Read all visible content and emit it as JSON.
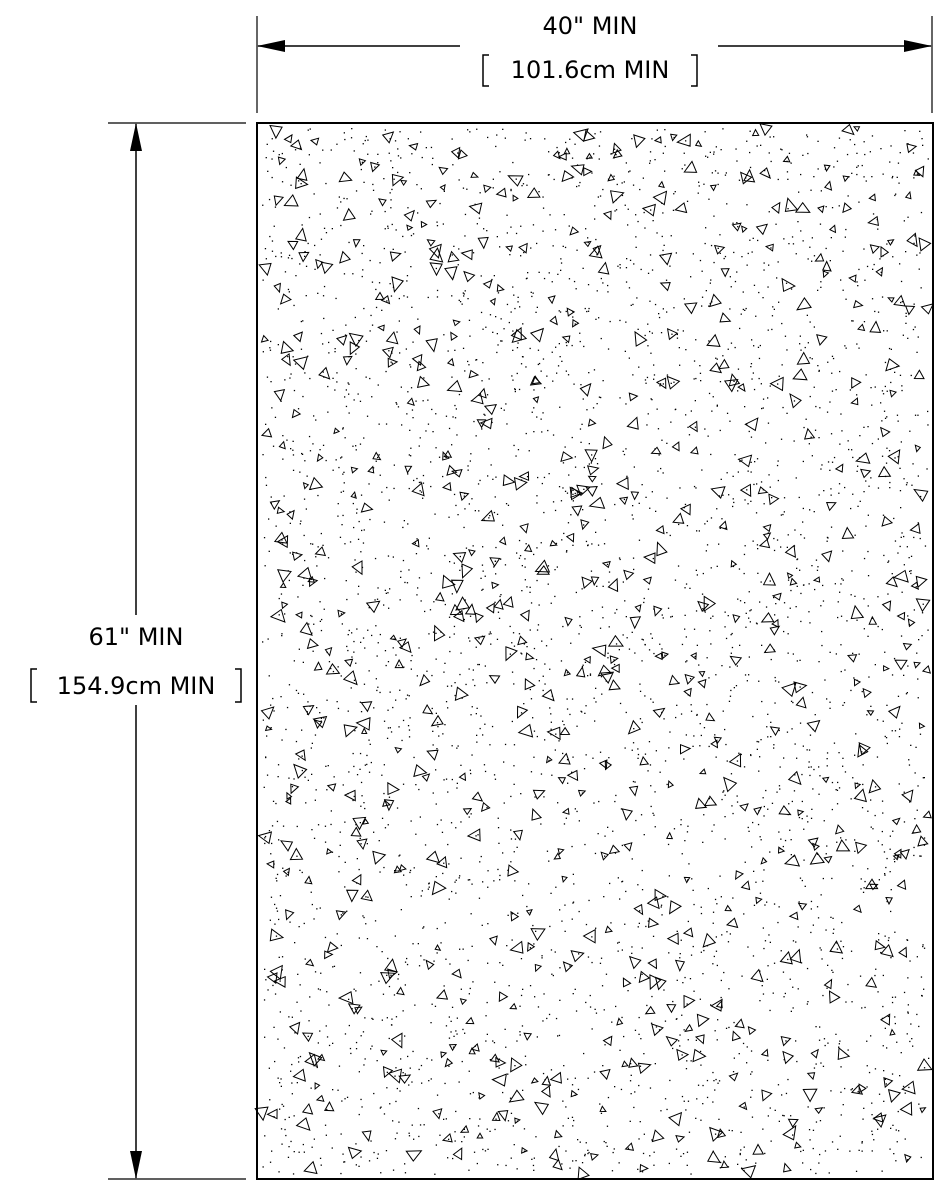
{
  "drawing": {
    "colors": {
      "line": "#000000",
      "background": "#ffffff"
    },
    "width_dimension": {
      "imperial": "40\" MIN",
      "metric": "101.6cm MIN"
    },
    "height_dimension": {
      "imperial": "61\" MIN",
      "metric": "154.9cm MIN"
    },
    "fill_pattern": "concrete-hatch"
  }
}
